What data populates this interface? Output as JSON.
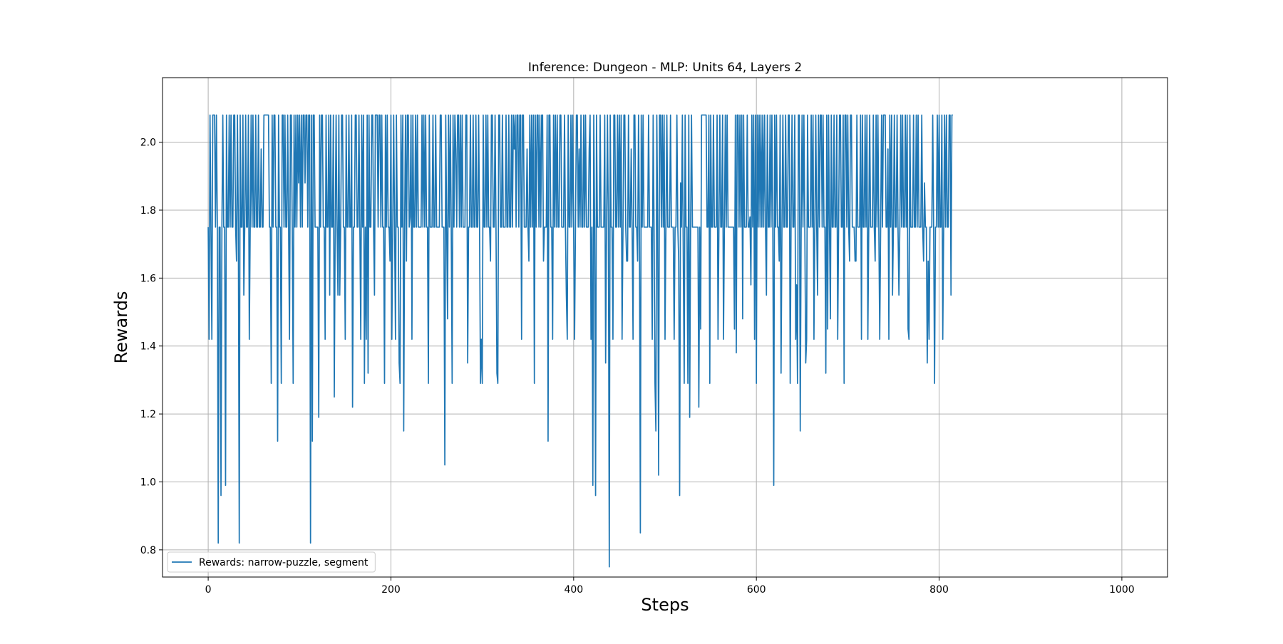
{
  "chart_data": {
    "type": "line",
    "title": "Inference: Dungeon - MLP: Units 64, Layers 2",
    "xlabel": "Steps",
    "ylabel": "Rewards",
    "xlim": [
      -50,
      1050
    ],
    "ylim": [
      0.72,
      2.19
    ],
    "x_ticks": [
      0,
      200,
      400,
      600,
      800,
      1000
    ],
    "x_tick_labels": [
      "0",
      "200",
      "400",
      "600",
      "800",
      "1000"
    ],
    "y_ticks": [
      0.8,
      1.0,
      1.2,
      1.4,
      1.6,
      1.8,
      2.0
    ],
    "y_tick_labels": [
      "0.8",
      "1.0",
      "1.2",
      "1.4",
      "1.6",
      "1.8",
      "2.0"
    ],
    "grid": true,
    "legend_position": "lower-left",
    "series": [
      {
        "name": "Rewards: narrow-puzzle, segment",
        "color": "#1f77b4",
        "x_start": 0,
        "x_step": 1,
        "values": [
          1.75,
          1.42,
          2.08,
          1.75,
          1.42,
          2.08,
          2.08,
          2.08,
          1.75,
          2.08,
          1.75,
          0.82,
          1.75,
          1.75,
          0.96,
          1.75,
          2.08,
          1.75,
          1.75,
          0.99,
          2.08,
          1.75,
          1.75,
          2.08,
          1.75,
          2.08,
          1.75,
          1.75,
          2.08,
          2.08,
          1.75,
          1.65,
          2.08,
          1.75,
          0.82,
          2.08,
          1.75,
          1.75,
          2.08,
          1.55,
          1.75,
          2.08,
          1.75,
          1.75,
          2.08,
          1.42,
          1.75,
          2.08,
          1.75,
          2.08,
          1.75,
          1.75,
          2.08,
          1.75,
          1.75,
          2.08,
          1.75,
          1.75,
          1.98,
          1.75,
          1.75,
          2.08,
          2.08,
          2.08,
          2.08,
          2.08,
          2.08,
          1.75,
          1.75,
          1.29,
          2.08,
          1.75,
          2.08,
          2.08,
          1.75,
          1.75,
          1.12,
          2.08,
          1.75,
          1.75,
          1.29,
          2.08,
          2.08,
          1.75,
          2.08,
          1.75,
          1.75,
          2.08,
          1.75,
          1.42,
          2.08,
          2.08,
          1.75,
          1.29,
          2.08,
          1.75,
          2.08,
          1.75,
          2.08,
          1.88,
          2.08,
          1.75,
          2.08,
          1.75,
          2.08,
          2.08,
          1.88,
          2.08,
          2.08,
          1.75,
          2.08,
          2.08,
          0.82,
          2.08,
          1.12,
          2.08,
          2.08,
          1.75,
          1.75,
          1.75,
          1.75,
          1.19,
          2.08,
          1.75,
          2.08,
          2.08,
          1.75,
          1.75,
          1.42,
          2.08,
          1.75,
          1.75,
          2.08,
          1.55,
          2.08,
          1.75,
          1.75,
          2.08,
          1.25,
          1.75,
          2.08,
          1.75,
          1.55,
          2.08,
          1.55,
          1.75,
          2.08,
          2.08,
          1.75,
          1.75,
          1.42,
          2.08,
          1.75,
          1.75,
          2.08,
          1.75,
          1.75,
          2.08,
          1.22,
          1.75,
          1.75,
          2.08,
          2.08,
          1.75,
          1.75,
          2.08,
          1.75,
          1.42,
          2.08,
          1.75,
          2.08,
          1.29,
          1.75,
          1.42,
          2.08,
          1.32,
          2.08,
          1.75,
          1.75,
          2.08,
          2.08,
          1.75,
          1.55,
          2.08,
          2.08,
          2.08,
          1.75,
          2.08,
          2.08,
          1.75,
          2.08,
          1.75,
          1.75,
          1.29,
          2.08,
          1.75,
          2.08,
          1.75,
          1.75,
          1.65,
          2.08,
          1.42,
          1.75,
          2.08,
          1.75,
          1.42,
          2.08,
          1.75,
          1.75,
          1.35,
          1.29,
          2.08,
          1.75,
          2.08,
          1.15,
          1.75,
          2.08,
          1.65,
          2.08,
          2.08,
          1.75,
          1.78,
          2.08,
          1.42,
          2.08,
          1.75,
          1.75,
          2.08,
          1.75,
          2.08,
          1.75,
          1.75,
          1.75,
          1.75,
          2.08,
          1.75,
          2.08,
          1.75,
          2.08,
          1.75,
          1.75,
          1.29,
          2.08,
          1.75,
          1.75,
          1.75,
          2.08,
          1.75,
          1.75,
          2.08,
          1.75,
          1.75,
          1.75,
          1.75,
          2.08,
          2.08,
          1.75,
          1.75,
          1.75,
          1.05,
          2.08,
          1.75,
          1.48,
          2.08,
          1.75,
          2.08,
          1.75,
          1.29,
          2.08,
          1.75,
          2.08,
          1.98,
          1.75,
          2.08,
          2.08,
          1.75,
          2.08,
          1.75,
          2.08,
          1.75,
          1.75,
          1.75,
          2.08,
          2.08,
          1.35,
          1.75,
          1.75,
          2.08,
          1.75,
          1.75,
          2.08,
          1.75,
          1.75,
          2.08,
          1.75,
          1.75,
          2.08,
          1.75,
          1.29,
          1.42,
          1.29,
          2.08,
          1.75,
          1.75,
          2.08,
          1.75,
          2.08,
          1.75,
          1.75,
          1.65,
          2.08,
          2.08,
          1.75,
          1.75,
          2.08,
          1.75,
          1.32,
          1.29,
          2.08,
          2.08,
          1.75,
          1.75,
          2.08,
          1.75,
          1.75,
          1.75,
          2.08,
          1.75,
          1.75,
          2.08,
          1.75,
          1.75,
          2.08,
          1.75,
          2.08,
          1.98,
          2.08,
          1.75,
          2.08,
          2.08,
          1.75,
          2.08,
          2.08,
          1.42,
          2.08,
          2.08,
          1.75,
          1.75,
          1.75,
          1.98,
          1.75,
          1.65,
          2.08,
          1.75,
          2.08,
          1.75,
          2.08,
          1.29,
          2.08,
          1.75,
          2.08,
          2.08,
          1.75,
          2.08,
          1.75,
          2.08,
          2.08,
          1.65,
          1.75,
          1.75,
          1.75,
          2.08,
          1.12,
          2.08,
          2.08,
          1.75,
          1.75,
          1.42,
          2.08,
          1.75,
          2.08,
          1.75,
          2.08,
          1.75,
          1.75,
          2.08,
          2.08,
          1.75,
          1.75,
          1.75,
          2.08,
          1.75,
          1.55,
          1.42,
          2.08,
          1.75,
          1.75,
          2.08,
          1.75,
          2.08,
          1.75,
          1.42,
          1.75,
          2.08,
          2.08,
          1.75,
          1.98,
          1.75,
          2.08,
          1.75,
          1.75,
          2.08,
          1.75,
          2.08,
          1.75,
          1.75,
          1.75,
          1.98,
          2.08,
          1.42,
          1.75,
          0.99,
          2.08,
          1.75,
          0.96,
          2.08,
          1.75,
          1.75,
          1.75,
          2.08,
          1.75,
          1.75,
          1.75,
          1.75,
          2.08,
          1.35,
          1.75,
          2.08,
          1.75,
          0.75,
          2.08,
          1.75,
          1.75,
          1.42,
          2.08,
          2.08,
          1.75,
          1.75,
          2.08,
          1.75,
          2.08,
          1.75,
          2.08,
          1.42,
          1.75,
          2.08,
          2.08,
          1.75,
          1.65,
          1.65,
          2.08,
          1.75,
          1.75,
          1.98,
          1.75,
          1.42,
          2.08,
          2.08,
          1.75,
          1.75,
          1.65,
          2.08,
          1.75,
          0.85,
          2.08,
          1.75,
          2.08,
          1.75,
          1.75,
          1.75,
          1.75,
          1.75,
          2.08,
          1.75,
          1.75,
          1.75,
          1.42,
          2.08,
          1.75,
          1.29,
          1.15,
          2.08,
          1.75,
          1.02,
          2.08,
          2.08,
          1.75,
          2.08,
          1.75,
          2.08,
          1.42,
          1.75,
          2.08,
          1.75,
          1.75,
          1.75,
          2.08,
          1.75,
          1.75,
          1.75,
          1.42,
          1.75,
          1.75,
          2.08,
          1.75,
          1.65,
          0.96,
          1.88,
          1.75,
          2.08,
          1.65,
          1.29,
          2.08,
          1.75,
          1.75,
          1.29,
          2.08,
          1.19,
          1.75,
          2.08,
          1.75,
          1.75,
          1.75,
          1.75,
          1.75,
          1.75,
          1.75,
          1.22,
          1.75,
          1.45,
          2.08,
          2.08,
          2.08,
          2.08,
          2.08,
          2.08,
          1.75,
          1.75,
          2.08,
          1.29,
          2.08,
          1.75,
          1.75,
          2.08,
          1.75,
          1.75,
          1.75,
          2.08,
          1.42,
          1.75,
          2.08,
          1.75,
          1.75,
          2.08,
          1.42,
          1.75,
          2.08,
          1.75,
          2.08,
          1.75,
          1.75,
          1.75,
          1.75,
          1.75,
          1.75,
          1.75,
          1.45,
          2.08,
          1.38,
          2.08,
          2.08,
          1.75,
          2.08,
          1.75,
          2.08,
          1.48,
          2.08,
          1.75,
          1.75,
          1.75,
          2.08,
          1.75,
          1.75,
          1.78,
          1.58,
          2.08,
          1.75,
          2.08,
          1.42,
          2.08,
          1.29,
          2.08,
          1.75,
          2.08,
          1.75,
          2.08,
          1.75,
          2.08,
          1.75,
          2.08,
          1.75,
          1.55,
          2.08,
          1.75,
          1.75,
          2.08,
          1.75,
          2.08,
          1.75,
          0.99,
          2.08,
          1.75,
          2.08,
          1.75,
          1.75,
          1.65,
          2.08,
          1.32,
          1.75,
          2.08,
          1.75,
          1.75,
          2.08,
          1.75,
          1.75,
          2.08,
          2.08,
          1.29,
          1.78,
          2.08,
          1.75,
          1.75,
          2.08,
          1.42,
          1.58,
          1.29,
          2.08,
          2.08,
          1.15,
          1.75,
          2.08,
          1.75,
          2.08,
          1.75,
          1.35,
          1.42,
          2.08,
          1.75,
          1.75,
          1.75,
          2.08,
          1.75,
          2.08,
          1.42,
          1.75,
          2.08,
          1.75,
          1.55,
          2.08,
          1.75,
          2.08,
          2.08,
          1.75,
          2.08,
          1.75,
          1.75,
          1.32,
          2.08,
          1.45,
          2.08,
          1.75,
          1.48,
          2.08,
          1.75,
          1.75,
          2.08,
          1.75,
          1.75,
          2.08,
          1.42,
          1.75,
          2.08,
          2.08,
          1.75,
          1.75,
          2.08,
          1.29,
          2.08,
          2.08,
          1.75,
          2.08,
          1.75,
          1.65,
          2.08,
          2.08,
          1.75,
          1.75,
          1.75,
          1.65,
          1.65,
          2.08,
          1.75,
          1.75,
          1.75,
          2.08,
          1.42,
          2.08,
          1.75,
          1.75,
          2.08,
          1.75,
          2.08,
          1.42,
          1.75,
          2.08,
          1.75,
          1.75,
          1.75,
          2.08,
          1.75,
          1.65,
          2.08,
          1.75,
          2.08,
          1.75,
          1.42,
          1.75,
          2.08,
          1.75,
          2.08,
          2.08,
          2.08,
          1.75,
          1.75,
          1.98,
          1.42,
          2.08,
          1.75,
          2.08,
          1.55,
          1.75,
          2.08,
          1.75,
          1.75,
          2.08,
          1.75,
          1.55,
          1.75,
          2.08,
          1.75,
          2.08,
          1.75,
          1.75,
          2.08,
          1.75,
          2.08,
          1.45,
          1.42,
          2.08,
          1.75,
          1.75,
          1.75,
          2.08,
          1.75,
          1.75,
          2.08,
          1.75,
          2.08,
          1.75,
          1.75,
          1.75,
          2.08,
          1.75,
          1.65,
          1.88,
          1.75,
          1.75,
          1.35,
          1.65,
          1.42,
          1.75,
          1.75,
          1.75,
          2.08,
          1.75,
          1.29,
          1.75,
          1.75,
          2.08,
          1.75,
          2.08,
          1.75,
          1.75,
          2.08,
          1.42,
          1.75,
          2.08,
          1.75,
          2.08,
          1.75,
          1.75,
          2.08,
          2.08,
          1.55,
          2.08,
          2.08
        ]
      }
    ]
  }
}
